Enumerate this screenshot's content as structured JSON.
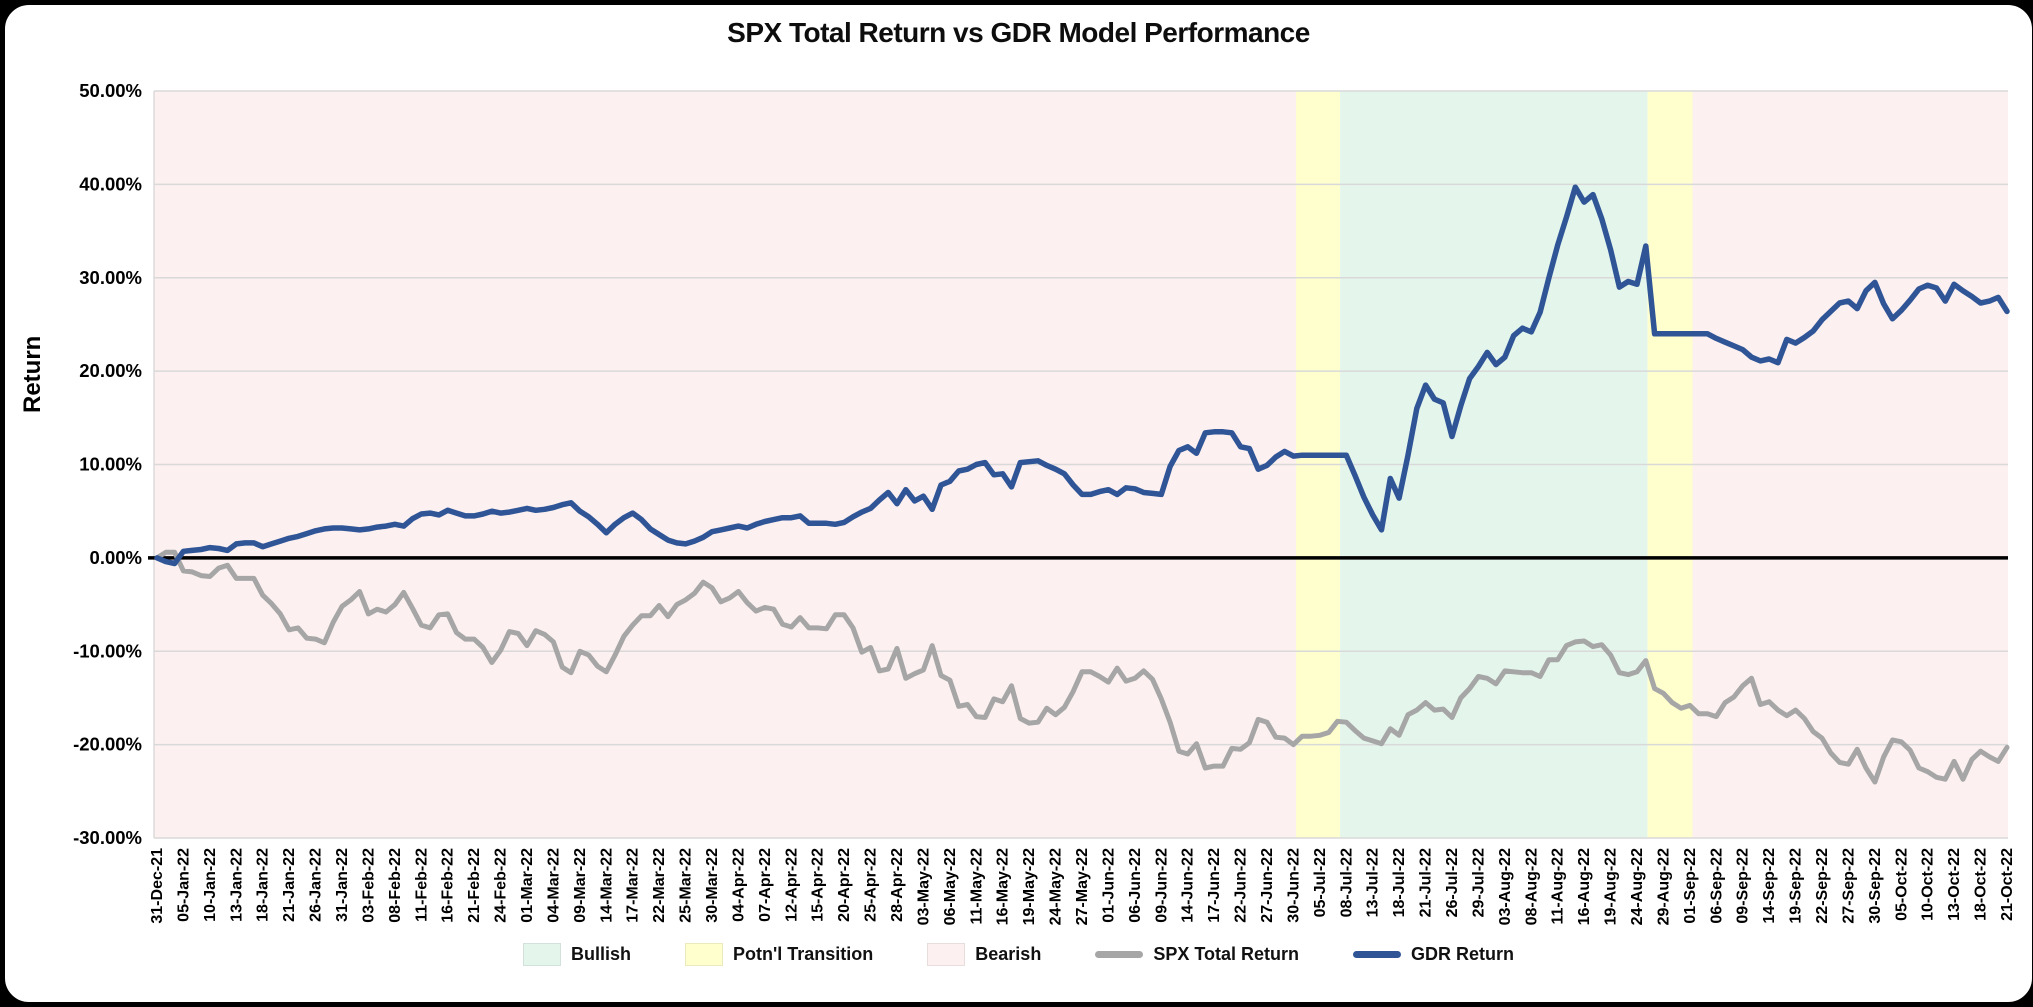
{
  "title": "SPX Total Return vs GDR Model Performance",
  "y_axis_title": "Return",
  "chart_data": {
    "type": "line",
    "title": "SPX Total Return vs GDR Model Performance",
    "ylabel": "Return",
    "ylim": [
      -30,
      50
    ],
    "grid": "horizontal",
    "legend_position": "bottom",
    "y_ticks": [
      {
        "label": "50.00%",
        "value": 50
      },
      {
        "label": "40.00%",
        "value": 40
      },
      {
        "label": "30.00%",
        "value": 30
      },
      {
        "label": "20.00%",
        "value": 20
      },
      {
        "label": "10.00%",
        "value": 10
      },
      {
        "label": "0.00%",
        "value": 0
      },
      {
        "label": "-10.00%",
        "value": -10
      },
      {
        "label": "-20.00%",
        "value": -20
      },
      {
        "label": "-30.00%",
        "value": -30
      }
    ],
    "x_tick_label_every": 3,
    "x_labels": [
      "31-Dec-21",
      "05-Jan-22",
      "10-Jan-22",
      "13-Jan-22",
      "18-Jan-22",
      "21-Jan-22",
      "26-Jan-22",
      "31-Jan-22",
      "03-Feb-22",
      "08-Feb-22",
      "11-Feb-22",
      "16-Feb-22",
      "21-Feb-22",
      "24-Feb-22",
      "01-Mar-22",
      "04-Mar-22",
      "09-Mar-22",
      "14-Mar-22",
      "17-Mar-22",
      "22-Mar-22",
      "25-Mar-22",
      "30-Mar-22",
      "04-Apr-22",
      "07-Apr-22",
      "12-Apr-22",
      "15-Apr-22",
      "20-Apr-22",
      "25-Apr-22",
      "28-Apr-22",
      "03-May-22",
      "06-May-22",
      "11-May-22",
      "16-May-22",
      "19-May-22",
      "24-May-22",
      "27-May-22",
      "01-Jun-22",
      "06-Jun-22",
      "09-Jun-22",
      "14-Jun-22",
      "17-Jun-22",
      "22-Jun-22",
      "27-Jun-22",
      "30-Jun-22",
      "05-Jul-22",
      "08-Jul-22",
      "13-Jul-22",
      "18-Jul-22",
      "21-Jul-22",
      "26-Jul-22",
      "29-Jul-22",
      "03-Aug-22",
      "08-Aug-22",
      "11-Aug-22",
      "16-Aug-22",
      "19-Aug-22",
      "24-Aug-22",
      "29-Aug-22",
      "01-Sep-22",
      "06-Sep-22",
      "09-Sep-22",
      "14-Sep-22",
      "19-Sep-22",
      "22-Sep-22",
      "27-Sep-22",
      "30-Sep-22",
      "05-Oct-22",
      "10-Oct-22",
      "13-Oct-22",
      "18-Oct-22",
      "21-Oct-22"
    ],
    "regimes": [
      {
        "label": "Bearish",
        "from": 0,
        "to": 129.3,
        "color": "#FCF0F0"
      },
      {
        "label": "Potn'l Transition",
        "from": 129.3,
        "to": 134.3,
        "color": "#FFFECD"
      },
      {
        "label": "Bullish",
        "from": 134.3,
        "to": 169.2,
        "color": "#E4F5EC"
      },
      {
        "label": "Potn'l Transition",
        "from": 169.2,
        "to": 174.3,
        "color": "#FFFECD"
      },
      {
        "label": "Bearish",
        "from": 174.3,
        "to": 210,
        "color": "#FCF0F0"
      }
    ],
    "series": [
      {
        "name": "SPX Total Return",
        "color": "#A6A6A6",
        "width": 5,
        "values": [
          0.0,
          0.6,
          0.6,
          -1.4,
          -1.5,
          -1.9,
          -2.0,
          -1.1,
          -0.8,
          -2.2,
          -2.2,
          -2.2,
          -4.0,
          -4.9,
          -6.0,
          -7.7,
          -7.5,
          -8.6,
          -8.7,
          -9.1,
          -6.9,
          -5.2,
          -4.5,
          -3.6,
          -6.0,
          -5.5,
          -5.8,
          -5.0,
          -3.7,
          -5.4,
          -7.2,
          -7.5,
          -6.1,
          -6.0,
          -8.0,
          -8.7,
          -8.7,
          -9.6,
          -11.2,
          -9.9,
          -7.9,
          -8.1,
          -9.4,
          -7.8,
          -8.2,
          -9.0,
          -11.7,
          -12.3,
          -10.0,
          -10.4,
          -11.6,
          -12.2,
          -10.4,
          -8.4,
          -7.2,
          -6.2,
          -6.2,
          -5.1,
          -6.3,
          -5.0,
          -4.5,
          -3.8,
          -2.6,
          -3.2,
          -4.7,
          -4.3,
          -3.6,
          -4.8,
          -5.7,
          -5.3,
          -5.5,
          -7.1,
          -7.4,
          -6.4,
          -7.5,
          -7.5,
          -7.6,
          -6.1,
          -6.1,
          -7.5,
          -10.1,
          -9.6,
          -12.1,
          -11.9,
          -9.7,
          -12.9,
          -12.4,
          -12.0,
          -9.4,
          -12.6,
          -13.1,
          -15.9,
          -15.7,
          -17.0,
          -17.1,
          -15.1,
          -15.4,
          -13.7,
          -17.2,
          -17.7,
          -17.6,
          -16.1,
          -16.8,
          -16.0,
          -14.3,
          -12.2,
          -12.2,
          -12.7,
          -13.3,
          -11.8,
          -13.2,
          -12.9,
          -12.1,
          -13.0,
          -15.1,
          -17.6,
          -20.7,
          -21.0,
          -19.9,
          -22.5,
          -22.3,
          -22.3,
          -20.4,
          -20.5,
          -19.8,
          -17.3,
          -17.6,
          -19.2,
          -19.3,
          -20.0,
          -19.1,
          -19.1,
          -19.0,
          -18.7,
          -17.5,
          -17.6,
          -18.5,
          -19.3,
          -19.6,
          -19.9,
          -18.3,
          -19.0,
          -16.8,
          -16.3,
          -15.5,
          -16.3,
          -16.2,
          -17.1,
          -15.0,
          -14.0,
          -12.7,
          -12.9,
          -13.5,
          -12.1,
          -12.2,
          -12.3,
          -12.3,
          -12.7,
          -10.9,
          -10.9,
          -9.4,
          -9.0,
          -8.9,
          -9.5,
          -9.3,
          -10.4,
          -12.3,
          -12.5,
          -12.2,
          -11.0,
          -14.0,
          -14.5,
          -15.5,
          -16.1,
          -15.8,
          -16.7,
          -16.7,
          -17.0,
          -15.5,
          -14.9,
          -13.7,
          -12.9,
          -15.7,
          -15.4,
          -16.3,
          -16.9,
          -16.3,
          -17.2,
          -18.6,
          -19.3,
          -20.9,
          -21.9,
          -22.1,
          -20.5,
          -22.5,
          -24.0,
          -21.3,
          -19.5,
          -19.7,
          -20.6,
          -22.5,
          -22.9,
          -23.5,
          -23.7,
          -21.8,
          -23.7,
          -21.6,
          -20.7,
          -21.3,
          -21.8,
          -20.3
        ]
      },
      {
        "name": "GDR Return",
        "color": "#2F5597",
        "width": 5.5,
        "values": [
          0.0,
          -0.4,
          -0.6,
          0.7,
          0.8,
          0.9,
          1.1,
          1.0,
          0.8,
          1.5,
          1.6,
          1.6,
          1.2,
          1.5,
          1.8,
          2.1,
          2.3,
          2.6,
          2.9,
          3.1,
          3.2,
          3.2,
          3.1,
          3.0,
          3.1,
          3.3,
          3.4,
          3.6,
          3.4,
          4.2,
          4.7,
          4.8,
          4.6,
          5.1,
          4.8,
          4.5,
          4.5,
          4.7,
          5.0,
          4.8,
          4.9,
          5.1,
          5.3,
          5.1,
          5.2,
          5.4,
          5.7,
          5.9,
          5.0,
          4.4,
          3.6,
          2.7,
          3.6,
          4.3,
          4.8,
          4.1,
          3.1,
          2.5,
          1.9,
          1.6,
          1.5,
          1.8,
          2.2,
          2.8,
          3.0,
          3.2,
          3.4,
          3.2,
          3.6,
          3.9,
          4.1,
          4.3,
          4.3,
          4.5,
          3.7,
          3.7,
          3.7,
          3.6,
          3.8,
          4.4,
          4.9,
          5.3,
          6.2,
          7.0,
          5.8,
          7.3,
          6.1,
          6.6,
          5.2,
          7.8,
          8.2,
          9.3,
          9.5,
          10.0,
          10.2,
          8.9,
          9.0,
          7.6,
          10.2,
          10.3,
          10.4,
          9.9,
          9.5,
          9.0,
          7.8,
          6.8,
          6.8,
          7.1,
          7.3,
          6.8,
          7.5,
          7.4,
          7.0,
          6.9,
          6.8,
          9.8,
          11.5,
          11.9,
          11.2,
          13.4,
          13.5,
          13.5,
          13.4,
          11.9,
          11.7,
          9.5,
          9.9,
          10.8,
          11.4,
          10.9,
          11.0,
          11.0,
          11.0,
          11.0,
          11.0,
          11.0,
          8.8,
          6.5,
          4.6,
          3.0,
          8.5,
          6.4,
          11.0,
          16.0,
          18.5,
          17.0,
          16.6,
          13.0,
          16.3,
          19.2,
          20.5,
          22.0,
          20.7,
          21.5,
          23.8,
          24.6,
          24.2,
          26.3,
          30.0,
          33.5,
          36.5,
          39.7,
          38.1,
          38.9,
          36.3,
          33.0,
          29.0,
          29.6,
          29.3,
          33.4,
          24.0,
          24.0,
          24.0,
          24.0,
          24.0,
          24.0,
          24.0,
          23.5,
          23.1,
          22.7,
          22.3,
          21.5,
          21.1,
          21.3,
          20.9,
          23.4,
          23.0,
          23.6,
          24.3,
          25.5,
          26.4,
          27.3,
          27.5,
          26.7,
          28.6,
          29.5,
          27.2,
          25.6,
          26.5,
          27.6,
          28.8,
          29.2,
          28.9,
          27.5,
          29.3,
          28.6,
          28.0,
          27.3,
          27.5,
          27.9,
          26.4
        ]
      }
    ],
    "legend": [
      {
        "label": "Bullish",
        "type": "box",
        "color": "#E4F5EC"
      },
      {
        "label": "Potn'l Transition",
        "type": "box",
        "color": "#FFFECD"
      },
      {
        "label": "Bearish",
        "type": "box",
        "color": "#FCF0F0"
      },
      {
        "label": "SPX Total Return",
        "type": "line",
        "color": "#A6A6A6"
      },
      {
        "label": "GDR Return",
        "type": "line",
        "color": "#2F5597"
      }
    ],
    "colors": {
      "gridline": "#D9D9D9",
      "zero_line": "#000000",
      "background": "#FFFFFF",
      "text": "#000000"
    }
  }
}
